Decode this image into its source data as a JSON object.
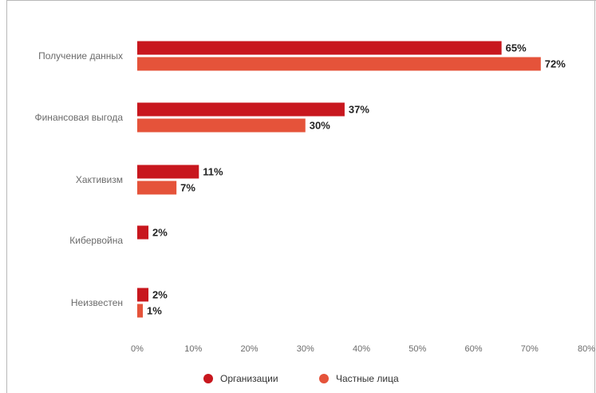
{
  "chart_data": {
    "type": "bar",
    "orientation": "horizontal",
    "title": "",
    "xlabel": "",
    "ylabel": "",
    "categories": [
      "Получение данных",
      "Финансовая выгода",
      "Хактивизм",
      "Кибервойна",
      "Неизвестен"
    ],
    "series": [
      {
        "name": "Организации",
        "color": "#c8171e",
        "values": [
          65,
          37,
          11,
          2,
          2
        ],
        "labels": [
          "65%",
          "37%",
          "11%",
          "2%",
          "2%"
        ]
      },
      {
        "name": "Частные лица",
        "color": "#e5533a",
        "values": [
          72,
          30,
          7,
          null,
          1
        ],
        "labels": [
          "72%",
          "30%",
          "7%",
          "",
          "1%"
        ]
      }
    ],
    "xlim": [
      0,
      80
    ],
    "xticks": [
      0,
      10,
      20,
      30,
      40,
      50,
      60,
      70,
      80
    ],
    "xtick_labels": [
      "0%",
      "10%",
      "20%",
      "30%",
      "40%",
      "50%",
      "60%",
      "70%",
      "80%"
    ],
    "grid": false,
    "legend_position": "bottom-center"
  }
}
